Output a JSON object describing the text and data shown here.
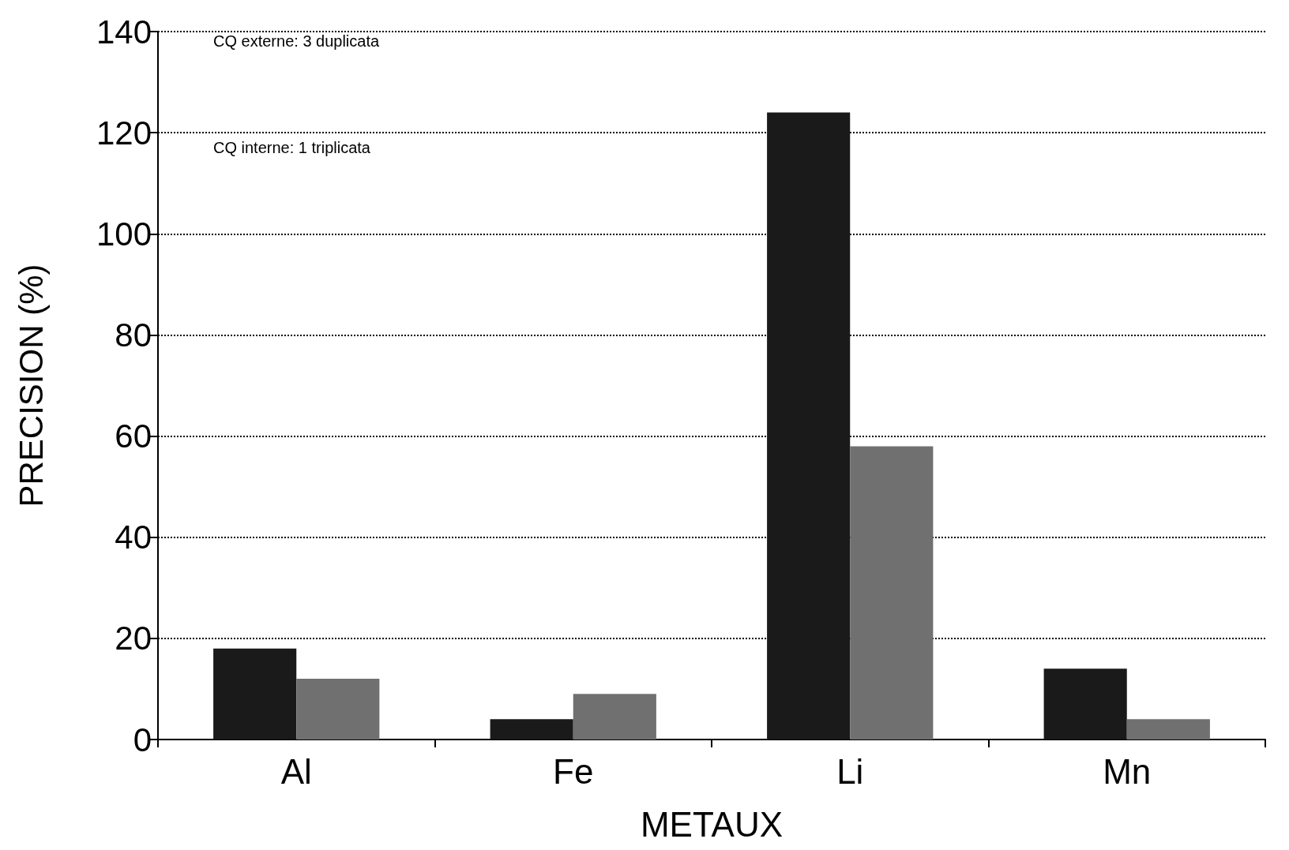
{
  "chart_data": {
    "type": "bar",
    "xlabel": "METAUX",
    "ylabel": "PRECISION (%)",
    "categories": [
      "Al",
      "Fe",
      "Li",
      "Mn"
    ],
    "series": [
      {
        "color": "#1a1a1a",
        "values": [
          18,
          4,
          124,
          14
        ]
      },
      {
        "color": "#707070",
        "values": [
          12,
          9,
          58,
          4
        ]
      }
    ],
    "ylim": [
      0,
      140
    ],
    "yticks": [
      0,
      20,
      40,
      60,
      80,
      100,
      120,
      140
    ],
    "grid": "y",
    "annotations": [
      "CQ externe: 3 duplicata",
      "CQ interne: 1 triplicata"
    ]
  }
}
